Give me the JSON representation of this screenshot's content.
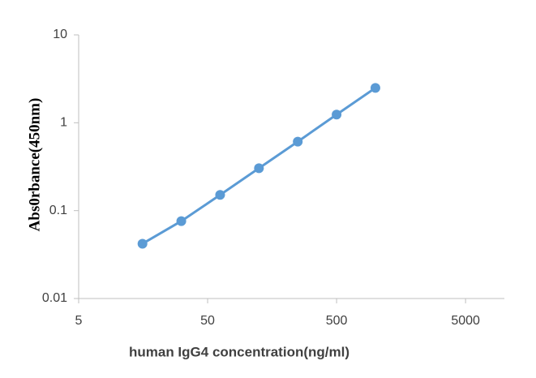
{
  "chart_data": {
    "type": "line",
    "x_label": "human IgG4 concentration(ng/ml)",
    "y_label": "Abs0rbance(450nm)",
    "x": [
      15.625,
      31.25,
      62.5,
      125,
      250,
      500,
      1000
    ],
    "series": [
      {
        "color": "#5b9bd5",
        "values": [
          0.042,
          0.076,
          0.151,
          0.304,
          0.61,
          1.24,
          2.49
        ]
      }
    ],
    "xlim": [
      5,
      10000
    ],
    "xticks": [
      5,
      50,
      500,
      5000
    ],
    "ylim": [
      0.01,
      10
    ],
    "yticks": [
      0.01,
      0.1,
      1,
      10
    ],
    "xscale": "log",
    "yscale": "log",
    "grid": false
  }
}
